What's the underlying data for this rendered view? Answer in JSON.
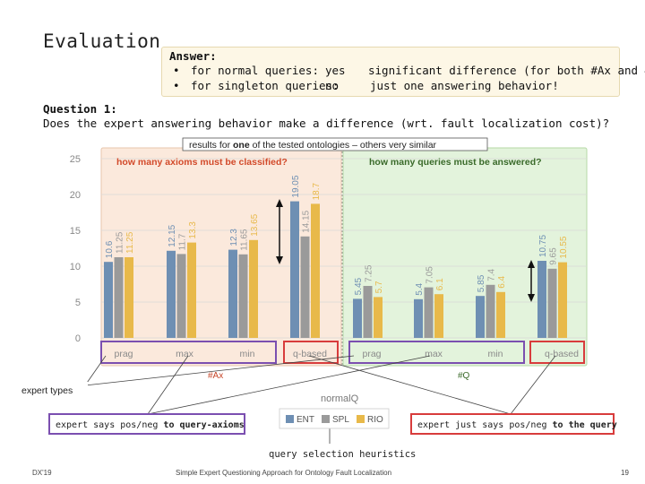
{
  "slide": {
    "title": "Evaluation",
    "answer": {
      "heading": "Answer:",
      "rows": [
        {
          "bullet": "•",
          "label": "for normal queries:",
          "value": "yes",
          "comment": "significant difference (for both #Ax and #Q)"
        },
        {
          "bullet": "•",
          "label": "for singleton queries:",
          "value": "no",
          "comment": "just one answering behavior!"
        }
      ]
    },
    "question": {
      "heading": "Question 1:",
      "text": "Does the expert answering behavior make a difference (wrt. fault localization cost)?"
    },
    "footer": {
      "left": "DX'19",
      "center": "Simple Expert Questioning Approach for Ontology Fault Localization",
      "page": "19"
    }
  },
  "chart_data": {
    "type": "bar",
    "note": {
      "prefix": "results for ",
      "bold": "one",
      "suffix": " of the tested ontologies – others very similar"
    },
    "panels": [
      {
        "title": "how many axioms must be classified?",
        "axis_label": "#Ax"
      },
      {
        "title": "how many queries must be answered?",
        "axis_label": "#Q"
      }
    ],
    "ylim": [
      0,
      25
    ],
    "yticks": [
      "0",
      "5",
      "10",
      "15",
      "20",
      "25"
    ],
    "categories": [
      "prag",
      "max",
      "min",
      "q-based",
      "prag",
      "max",
      "min",
      "q-based"
    ],
    "series": [
      {
        "name": "ENT",
        "color": "#6e8fb3",
        "values": [
          10.6,
          12.15,
          12.3,
          19.05,
          5.45,
          5.4,
          5.85,
          10.75
        ]
      },
      {
        "name": "SPL",
        "color": "#9a9a9a",
        "values": [
          11.25,
          11.7,
          11.65,
          14.15,
          7.25,
          7.05,
          7.4,
          9.65
        ]
      },
      {
        "name": "RIO",
        "color": "#e8b94a",
        "values": [
          11.25,
          13.3,
          13.65,
          18.7,
          5.7,
          6.1,
          6.4,
          10.55
        ]
      }
    ],
    "labels": [
      [
        "10.6",
        "12.15",
        "12.3",
        "19.05",
        "5.45",
        "5.4",
        "5.85",
        "10.75"
      ],
      [
        "11.25",
        "11.7",
        "11.65",
        "14.15",
        "7.25",
        "7.05",
        "7.4",
        "9.65"
      ],
      [
        "11.25",
        "13.3",
        "13.65",
        "18.7",
        "5.7",
        "6.1",
        "6.4",
        "10.55"
      ]
    ],
    "x_title": "normalQ",
    "legend_title": "query selection heuristics",
    "annotations": {
      "expert_types": "expert types",
      "pos_neg_axioms": {
        "prefix": "expert says pos/neg ",
        "bold": "to query-axioms"
      },
      "pos_neg_query": {
        "prefix": "expert just says pos/neg ",
        "bold": "to the query"
      }
    }
  }
}
